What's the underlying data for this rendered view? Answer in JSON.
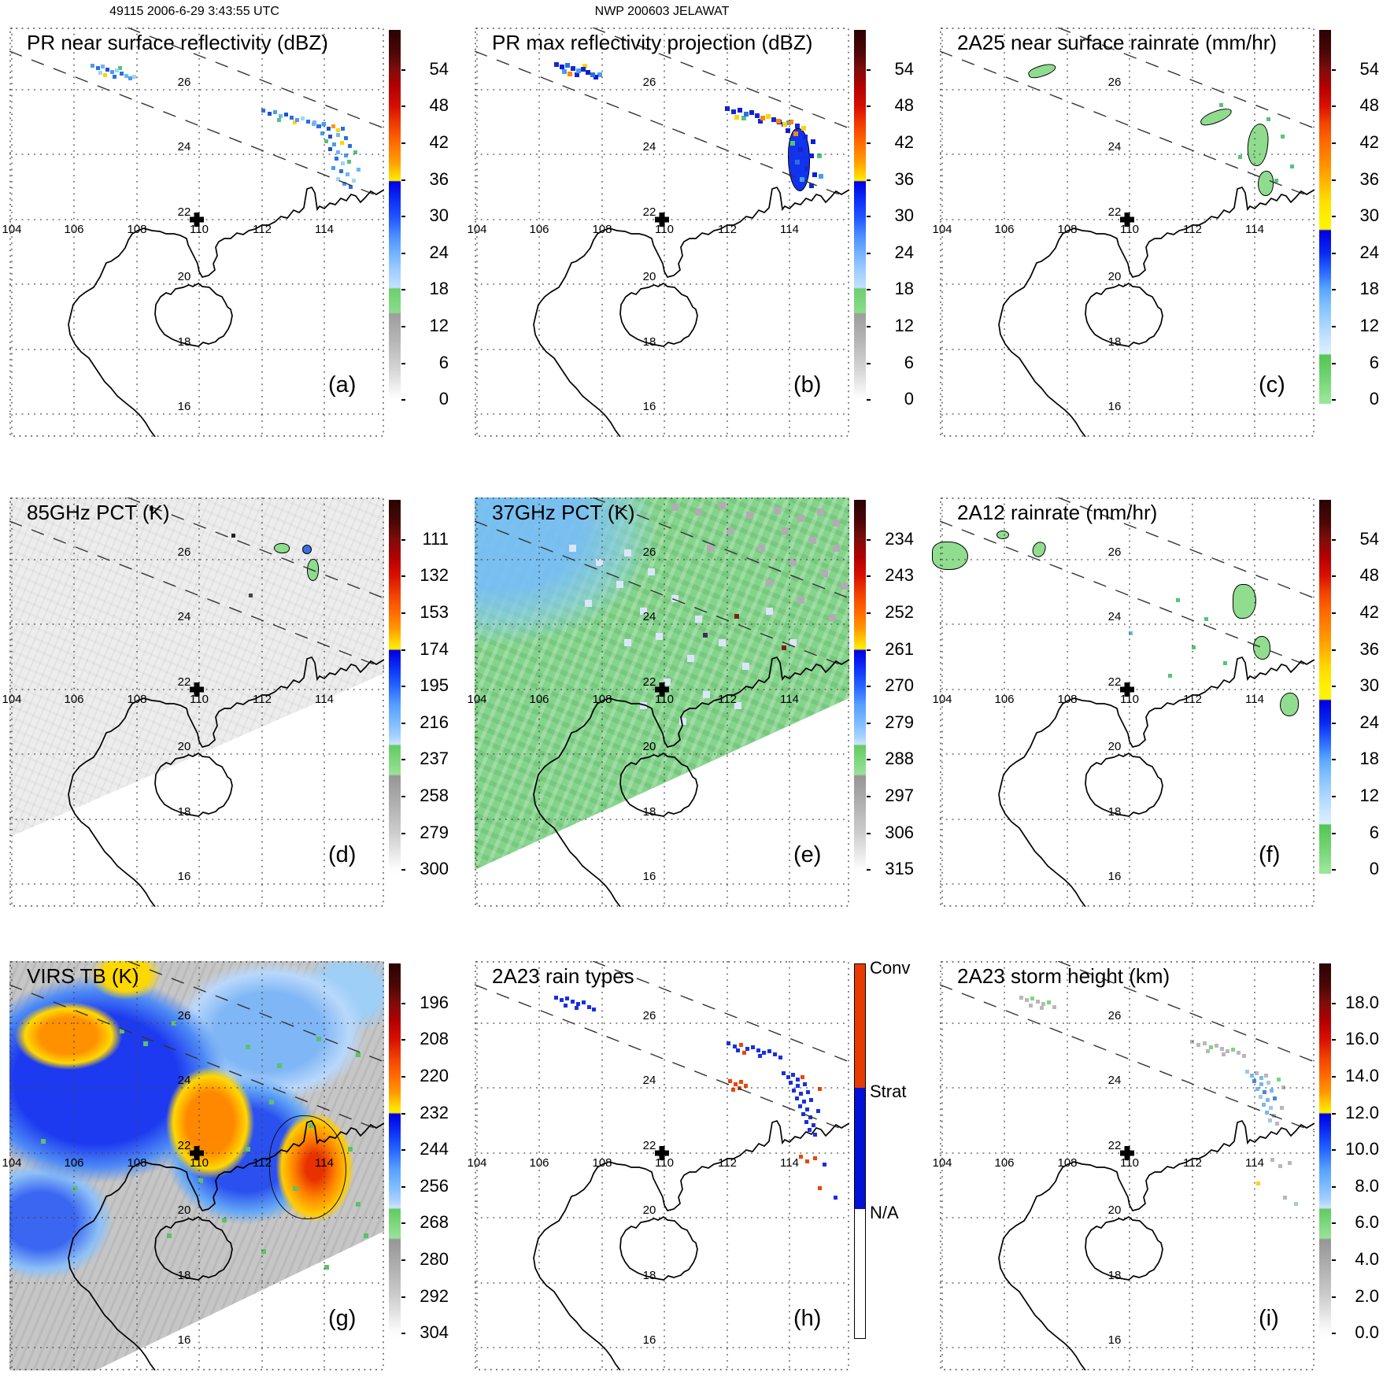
{
  "header": {
    "left": "49115 2006-6-29 3:43:55 UTC",
    "center": "NWP 200603 JELAWAT"
  },
  "map_grid": {
    "lon_labels": [
      "104",
      "106",
      "108",
      "110",
      "112",
      "114"
    ],
    "lat_labels": [
      "26",
      "24",
      "22",
      "20",
      "18",
      "16"
    ]
  },
  "panels": [
    {
      "letter": "(a)",
      "title": "PR near surface reflectivity (dBZ)",
      "colorbar": {
        "type": "reflectivity",
        "ticks": [
          "54",
          "48",
          "42",
          "36",
          "30",
          "24",
          "18",
          "12",
          "6",
          "0"
        ]
      }
    },
    {
      "letter": "(b)",
      "title": "PR max reflectivity projection (dBZ)",
      "colorbar": {
        "type": "reflectivity",
        "ticks": [
          "54",
          "48",
          "42",
          "36",
          "30",
          "24",
          "18",
          "12",
          "6",
          "0"
        ]
      }
    },
    {
      "letter": "(c)",
      "title": "2A25 near surface rainrate (mm/hr)",
      "colorbar": {
        "type": "rainrate",
        "ticks": [
          "54",
          "48",
          "42",
          "36",
          "30",
          "24",
          "18",
          "12",
          "6",
          "0"
        ]
      }
    },
    {
      "letter": "(d)",
      "title": "85GHz PCT (K)",
      "colorbar": {
        "type": "pct",
        "ticks": [
          "111",
          "132",
          "153",
          "174",
          "195",
          "216",
          "237",
          "258",
          "279",
          "300"
        ]
      }
    },
    {
      "letter": "(e)",
      "title": "37GHz PCT (K)",
      "colorbar": {
        "type": "pct",
        "ticks": [
          "234",
          "243",
          "252",
          "261",
          "270",
          "279",
          "288",
          "297",
          "306",
          "315"
        ]
      }
    },
    {
      "letter": "(f)",
      "title": "2A12 rainrate (mm/hr)",
      "colorbar": {
        "type": "rainrate",
        "ticks": [
          "54",
          "48",
          "42",
          "36",
          "30",
          "24",
          "18",
          "12",
          "6",
          "0"
        ]
      }
    },
    {
      "letter": "(g)",
      "title": "VIRS TB (K)",
      "colorbar": {
        "type": "pct",
        "ticks": [
          "196",
          "208",
          "220",
          "232",
          "244",
          "256",
          "268",
          "280",
          "292",
          "304"
        ]
      }
    },
    {
      "letter": "(h)",
      "title": "2A23 rain types",
      "colorbar": {
        "type": "raintype",
        "labels": [
          "Conv",
          "Strat",
          "N/A"
        ]
      }
    },
    {
      "letter": "(i)",
      "title": "2A23 storm height (km)",
      "colorbar": {
        "type": "pct",
        "ticks": [
          "18.0",
          "16.0",
          "14.0",
          "12.0",
          "10.0",
          "8.0",
          "6.0",
          "4.0",
          "2.0",
          "0.0"
        ]
      }
    }
  ],
  "colors": {
    "convective": "#e83b00",
    "stratiform": "#0011d8",
    "land_outline": "#000000",
    "grid": "#444444"
  }
}
